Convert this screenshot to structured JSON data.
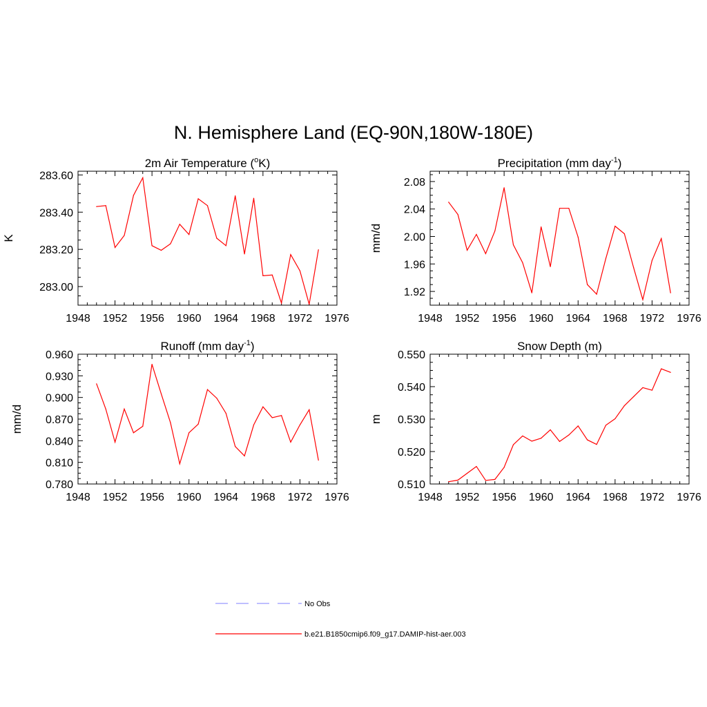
{
  "title": "N. Hemisphere Land (EQ-90N,180W-180E)",
  "legend": [
    {
      "label": "No Obs",
      "color": "#9999ff",
      "style": "dashed"
    },
    {
      "label": "b.e21.B1850cmip6.f09_g17.DAMIP-hist-aer.003",
      "color": "#ff0000",
      "style": "solid"
    }
  ],
  "chart_data": [
    {
      "type": "line",
      "title": "2m Air Temperature (",
      "title_sup": "o",
      "title_tail": "K)",
      "ylabel": "K",
      "xlim": [
        1948,
        1976
      ],
      "xticks": [
        "1948",
        "1952",
        "1956",
        "1960",
        "1964",
        "1968",
        "1972",
        "1976"
      ],
      "ylim": [
        282.9,
        283.62
      ],
      "yticks": [
        "283.00",
        "283.20",
        "283.40",
        "283.60"
      ],
      "series": [
        {
          "color": "#ff0000",
          "x": [
            1950,
            1951,
            1952,
            1953,
            1954,
            1955,
            1956,
            1957,
            1958,
            1959,
            1960,
            1961,
            1962,
            1963,
            1964,
            1965,
            1966,
            1967,
            1968,
            1969,
            1970,
            1971,
            1972,
            1973,
            1974
          ],
          "y": [
            283.43,
            283.435,
            283.21,
            283.275,
            283.49,
            283.585,
            283.22,
            283.195,
            283.23,
            283.335,
            283.28,
            283.472,
            283.435,
            283.26,
            283.22,
            283.488,
            283.175,
            283.475,
            283.058,
            283.062,
            282.912,
            283.172,
            283.085,
            282.905,
            283.198
          ]
        }
      ]
    },
    {
      "type": "line",
      "title": "Precipitation (mm day",
      "title_sup": "-1",
      "title_tail": ")",
      "ylabel": "mm/d",
      "xlim": [
        1948,
        1976
      ],
      "xticks": [
        "1948",
        "1952",
        "1956",
        "1960",
        "1964",
        "1968",
        "1972",
        "1976"
      ],
      "ylim": [
        1.9,
        2.095
      ],
      "yticks": [
        "1.92",
        "1.96",
        "2.00",
        "2.04",
        "2.08"
      ],
      "series": [
        {
          "color": "#ff0000",
          "x": [
            1950,
            1951,
            1952,
            1953,
            1954,
            1955,
            1956,
            1957,
            1958,
            1959,
            1960,
            1961,
            1962,
            1963,
            1964,
            1965,
            1966,
            1967,
            1968,
            1969,
            1970,
            1971,
            1972,
            1973,
            1974
          ],
          "y": [
            2.05,
            2.032,
            1.98,
            2.003,
            1.975,
            2.008,
            2.071,
            1.988,
            1.962,
            1.918,
            2.014,
            1.956,
            2.041,
            2.041,
            1.999,
            1.93,
            1.916,
            1.968,
            2.015,
            2.004,
            1.955,
            1.908,
            1.965,
            1.997,
            1.918
          ]
        }
      ]
    },
    {
      "type": "line",
      "title": "Runoff (mm day",
      "title_sup": "-1",
      "title_tail": ")",
      "ylabel": "mm/d",
      "xlim": [
        1948,
        1976
      ],
      "xticks": [
        "1948",
        "1952",
        "1956",
        "1960",
        "1964",
        "1968",
        "1972",
        "1976"
      ],
      "ylim": [
        0.78,
        0.96
      ],
      "yticks": [
        "0.780",
        "0.810",
        "0.840",
        "0.870",
        "0.900",
        "0.930",
        "0.960"
      ],
      "series": [
        {
          "color": "#ff0000",
          "x": [
            1950,
            1951,
            1952,
            1953,
            1954,
            1955,
            1956,
            1957,
            1958,
            1959,
            1960,
            1961,
            1962,
            1963,
            1964,
            1965,
            1966,
            1967,
            1968,
            1969,
            1970,
            1971,
            1972,
            1973,
            1974
          ],
          "y": [
            0.919,
            0.884,
            0.838,
            0.884,
            0.851,
            0.86,
            0.946,
            0.905,
            0.865,
            0.808,
            0.851,
            0.863,
            0.911,
            0.899,
            0.878,
            0.832,
            0.819,
            0.862,
            0.887,
            0.872,
            0.875,
            0.838,
            0.862,
            0.883,
            0.813
          ]
        }
      ]
    },
    {
      "type": "line",
      "title": "Snow Depth (m)",
      "title_sup": "",
      "title_tail": "",
      "ylabel": "m",
      "xlim": [
        1948,
        1976
      ],
      "xticks": [
        "1948",
        "1952",
        "1956",
        "1960",
        "1964",
        "1968",
        "1972",
        "1976"
      ],
      "ylim": [
        0.51,
        0.55
      ],
      "yticks": [
        "0.510",
        "0.520",
        "0.530",
        "0.540",
        "0.550"
      ],
      "series": [
        {
          "color": "#ff0000",
          "x": [
            1950,
            1951,
            1952,
            1953,
            1954,
            1955,
            1956,
            1957,
            1958,
            1959,
            1960,
            1961,
            1962,
            1963,
            1964,
            1965,
            1966,
            1967,
            1968,
            1969,
            1970,
            1971,
            1972,
            1973,
            1974
          ],
          "y": [
            0.5107,
            0.5112,
            0.5133,
            0.5154,
            0.5111,
            0.5114,
            0.5151,
            0.5221,
            0.5248,
            0.5232,
            0.5241,
            0.5267,
            0.5231,
            0.5251,
            0.5279,
            0.5236,
            0.5222,
            0.5281,
            0.5301,
            0.5341,
            0.5369,
            0.5397,
            0.5389,
            0.5455,
            0.5444
          ]
        }
      ]
    }
  ]
}
